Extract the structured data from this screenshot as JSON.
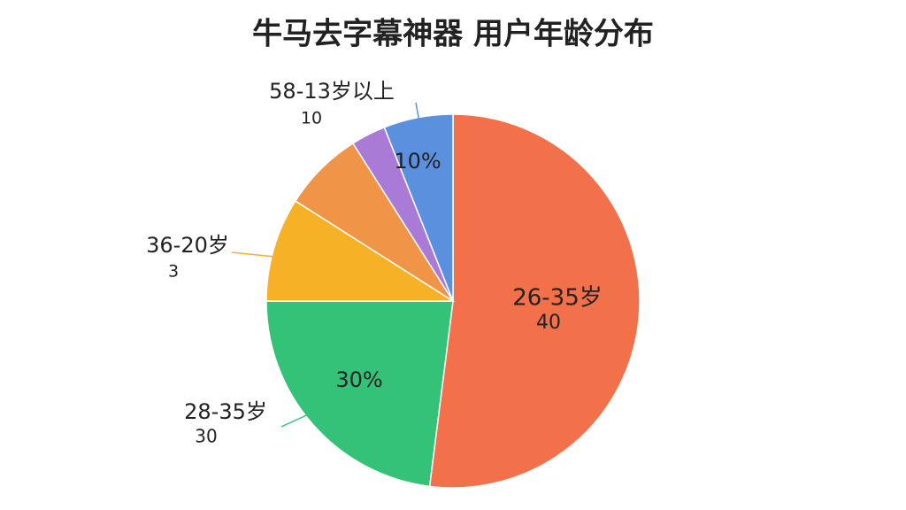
{
  "chart_data": {
    "type": "pie",
    "title": "牛马去字幕神器 用户年龄分布",
    "categories": [
      "26-35岁",
      "28-35岁",
      "36-20岁",
      null,
      null,
      "58-13岁以上"
    ],
    "values": [
      52,
      23,
      9,
      7,
      3,
      6
    ],
    "colors": [
      "#f2714a",
      "#34c178",
      "#f7b126",
      "#f09547",
      "#a97bd6",
      "#5b90df"
    ],
    "annotations": [
      "40",
      "30",
      "3",
      "10",
      "30%",
      "10%"
    ]
  }
}
